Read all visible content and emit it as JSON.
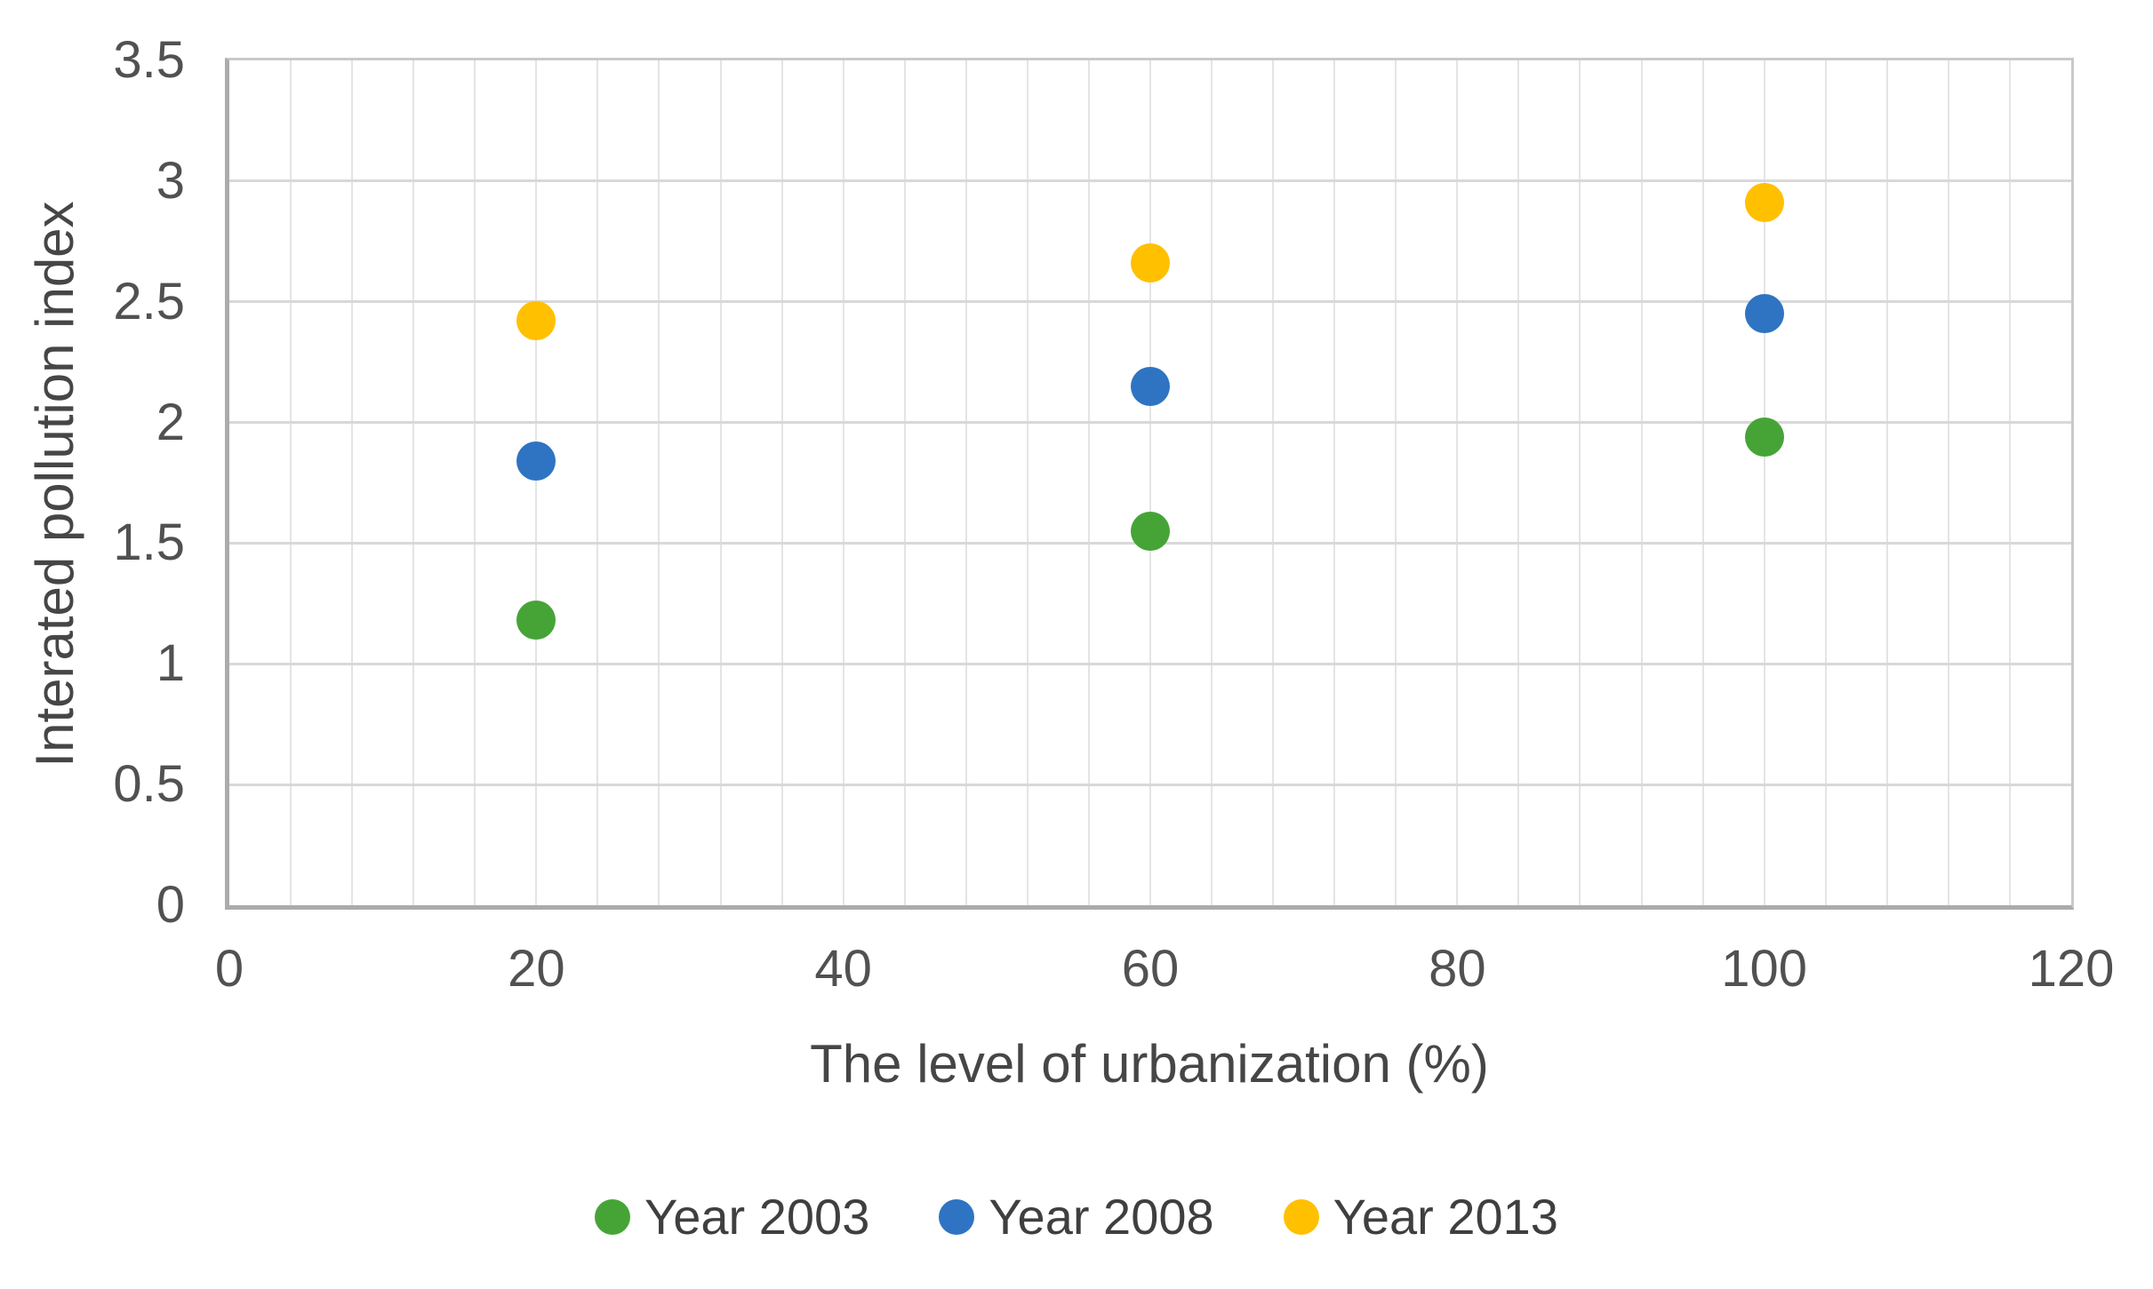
{
  "background_color": "#FFFFFF",
  "colors": {
    "grid_horizontal": "#D8D8D8",
    "grid_vertical": "#E4E4E4",
    "axis_border": "#ABABAB",
    "tick_text": "#515151",
    "title_text": "#464646",
    "series_green": "#46A437",
    "series_blue": "#2E74C2",
    "series_yellow": "#FFC000"
  },
  "chart_data": {
    "type": "scatter",
    "title": "",
    "xlabel": "The level of urbanization (%)",
    "ylabel": "Interated pollution index",
    "xlim": [
      0,
      120
    ],
    "ylim": [
      0,
      3.5
    ],
    "x_tick_labels": [
      "0",
      "20",
      "40",
      "60",
      "80",
      "100",
      "120"
    ],
    "x_tick_values": [
      0,
      20,
      40,
      60,
      80,
      100,
      120
    ],
    "y_tick_labels": [
      "0",
      "0.5",
      "1",
      "1.5",
      "2",
      "2.5",
      "3",
      "3.5"
    ],
    "y_tick_values": [
      0,
      0.5,
      1,
      1.5,
      2,
      2.5,
      3,
      3.5
    ],
    "x_minor_grid_step": 4,
    "y_grid_step": 0.5,
    "grid": "on",
    "legend_position": "bottom",
    "marker": "circle",
    "series": [
      {
        "name": "Year 2003",
        "color": "#46A437",
        "points": [
          {
            "x": 20,
            "y": 1.18
          },
          {
            "x": 60,
            "y": 1.55
          },
          {
            "x": 100,
            "y": 1.94
          }
        ]
      },
      {
        "name": "Year 2008",
        "color": "#2E74C2",
        "points": [
          {
            "x": 20,
            "y": 1.84
          },
          {
            "x": 60,
            "y": 2.15
          },
          {
            "x": 100,
            "y": 2.45
          }
        ]
      },
      {
        "name": "Year 2013",
        "color": "#FFC000",
        "points": [
          {
            "x": 20,
            "y": 2.42
          },
          {
            "x": 60,
            "y": 2.66
          },
          {
            "x": 100,
            "y": 2.91
          }
        ]
      }
    ]
  }
}
